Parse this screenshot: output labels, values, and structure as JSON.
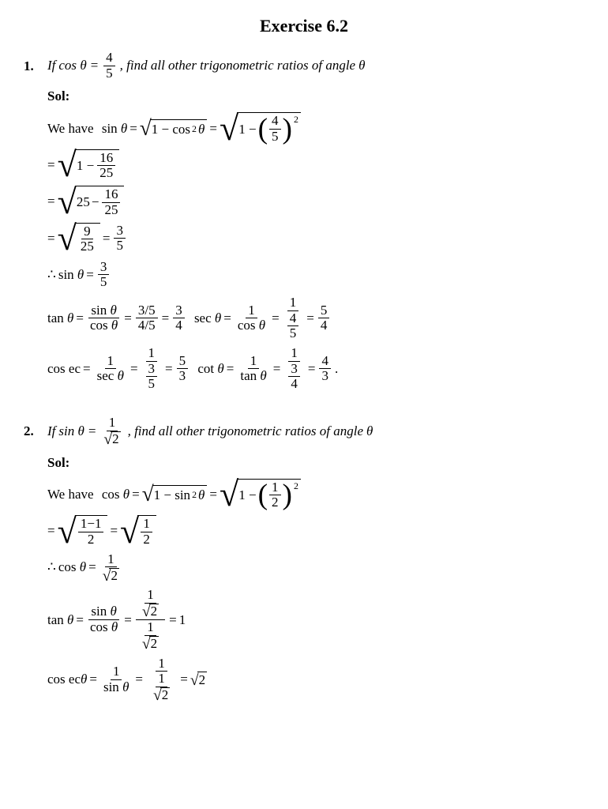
{
  "title": "Exercise 6.2",
  "problems": [
    {
      "num": "1.",
      "given_fn": "cos",
      "given_num": "4",
      "given_den": "5",
      "sq_num": "4",
      "sq_den": "5",
      "steps": {
        "s1_num": "16",
        "s1_den": "25",
        "s2_a": "25",
        "s2_num": "16",
        "s2_den": "25",
        "s3_num": "9",
        "s3_den": "25",
        "s3_rnum": "3",
        "s3_rden": "5",
        "therefore_fn": "sin",
        "therefore_num": "3",
        "therefore_den": "5",
        "tan_a": "3/5",
        "tan_b": "4/5",
        "tan_num": "3",
        "tan_den": "4",
        "sec_mid_num": "4",
        "sec_mid_den": "5",
        "sec_num": "5",
        "sec_den": "4",
        "csc_mid_num": "3",
        "csc_mid_den": "5",
        "csc_num": "5",
        "csc_den": "3",
        "cot_mid_num": "3",
        "cot_mid_den": "4",
        "cot_num": "4",
        "cot_den": "3"
      }
    },
    {
      "num": "2.",
      "given_fn": "sin",
      "given_num": "1",
      "given_den_sqrt": "2",
      "sq_num": "1",
      "sq_den": "2",
      "steps": {
        "s1_lnum": "1−1",
        "s1_lden": "2",
        "s1_rnum": "1",
        "s1_rden": "2",
        "therefore_fn": "cos",
        "therefore_num": "1",
        "therefore_den_sqrt": "2",
        "tan_top_num": "1",
        "tan_top_den_sqrt": "2",
        "tan_bot_num": "1",
        "tan_bot_den_sqrt": "2",
        "tan_result": "1",
        "csc_mid_num": "1",
        "csc_mid_den_sqrt": "2",
        "csc_result_sqrt": "2"
      }
    }
  ],
  "labels": {
    "if": "If",
    "findall": ", find all other trigonometric ratios of angle",
    "sol": "Sol:",
    "wehave": "We have",
    "sin": "sin",
    "cos": "cos",
    "tan": "tan",
    "sec": "sec",
    "cot": "cot",
    "cosec": "cos ec",
    "cosec2": "cos ec",
    "theta": "θ",
    "eq": "=",
    "one": "1",
    "minus": "−",
    "therefore": "∴",
    "dot": "."
  }
}
